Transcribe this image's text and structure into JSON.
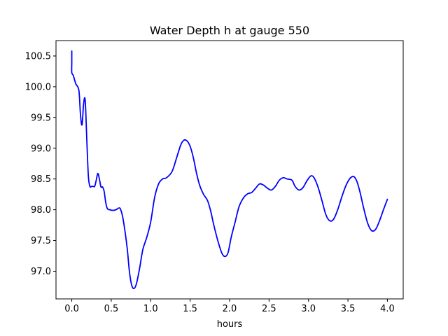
{
  "chart_data": {
    "type": "line",
    "title": "Water Depth h at gauge 550",
    "xlabel": "hours",
    "ylabel": "",
    "xlim": [
      -0.2,
      4.2
    ],
    "ylim": [
      96.55,
      100.75
    ],
    "xticks": [
      0.0,
      0.5,
      1.0,
      1.5,
      2.0,
      2.5,
      3.0,
      3.5,
      4.0
    ],
    "xtick_labels": [
      "0.0",
      "0.5",
      "1.0",
      "1.5",
      "2.0",
      "2.5",
      "3.0",
      "3.5",
      "4.0"
    ],
    "yticks": [
      97.0,
      97.5,
      98.0,
      98.5,
      99.0,
      99.5,
      100.0,
      100.5
    ],
    "ytick_labels": [
      "97.0",
      "97.5",
      "98.0",
      "98.5",
      "99.0",
      "99.5",
      "100.0",
      "100.5"
    ],
    "grid": false,
    "series": [
      {
        "color": "#0000ff",
        "x": [
          0.0,
          0.0,
          0.0,
          0.02,
          0.05,
          0.09,
          0.11,
          0.13,
          0.15,
          0.17,
          0.19,
          0.21,
          0.23,
          0.25,
          0.27,
          0.29,
          0.31,
          0.33,
          0.35,
          0.37,
          0.39,
          0.41,
          0.43,
          0.45,
          0.48,
          0.52,
          0.56,
          0.6,
          0.62,
          0.65,
          0.7,
          0.73,
          0.76,
          0.79,
          0.82,
          0.86,
          0.9,
          0.95,
          1.0,
          1.05,
          1.1,
          1.15,
          1.2,
          1.27,
          1.33,
          1.38,
          1.42,
          1.46,
          1.5,
          1.54,
          1.58,
          1.62,
          1.67,
          1.72,
          1.76,
          1.8,
          1.85,
          1.9,
          1.94,
          1.98,
          2.02,
          2.07,
          2.12,
          2.18,
          2.23,
          2.28,
          2.33,
          2.38,
          2.43,
          2.48,
          2.53,
          2.58,
          2.63,
          2.68,
          2.73,
          2.79,
          2.83,
          2.88,
          2.93,
          2.98,
          3.03,
          3.07,
          3.12,
          3.17,
          3.22,
          3.27,
          3.32,
          3.37,
          3.42,
          3.47,
          3.52,
          3.57,
          3.61,
          3.65,
          3.7,
          3.75,
          3.8,
          3.85,
          3.9,
          3.95,
          4.0
        ],
        "y": [
          100.58,
          100.4,
          100.23,
          100.18,
          100.05,
          99.94,
          99.55,
          99.38,
          99.72,
          99.78,
          99.15,
          98.55,
          98.38,
          98.38,
          98.38,
          98.38,
          98.48,
          98.59,
          98.5,
          98.37,
          98.37,
          98.3,
          98.12,
          98.02,
          98.0,
          97.99,
          98.0,
          98.03,
          98.0,
          97.85,
          97.4,
          97.0,
          96.77,
          96.72,
          96.8,
          97.05,
          97.35,
          97.55,
          97.8,
          98.2,
          98.42,
          98.5,
          98.52,
          98.62,
          98.85,
          99.05,
          99.13,
          99.12,
          99.03,
          98.85,
          98.6,
          98.4,
          98.25,
          98.15,
          97.98,
          97.75,
          97.5,
          97.3,
          97.24,
          97.3,
          97.55,
          97.8,
          98.05,
          98.2,
          98.26,
          98.28,
          98.35,
          98.42,
          98.4,
          98.35,
          98.32,
          98.38,
          98.48,
          98.52,
          98.5,
          98.48,
          98.38,
          98.32,
          98.36,
          98.47,
          98.55,
          98.52,
          98.37,
          98.15,
          97.92,
          97.82,
          97.85,
          98.0,
          98.2,
          98.38,
          98.5,
          98.54,
          98.47,
          98.3,
          98.02,
          97.78,
          97.66,
          97.68,
          97.82,
          98.0,
          98.17
        ]
      }
    ]
  }
}
